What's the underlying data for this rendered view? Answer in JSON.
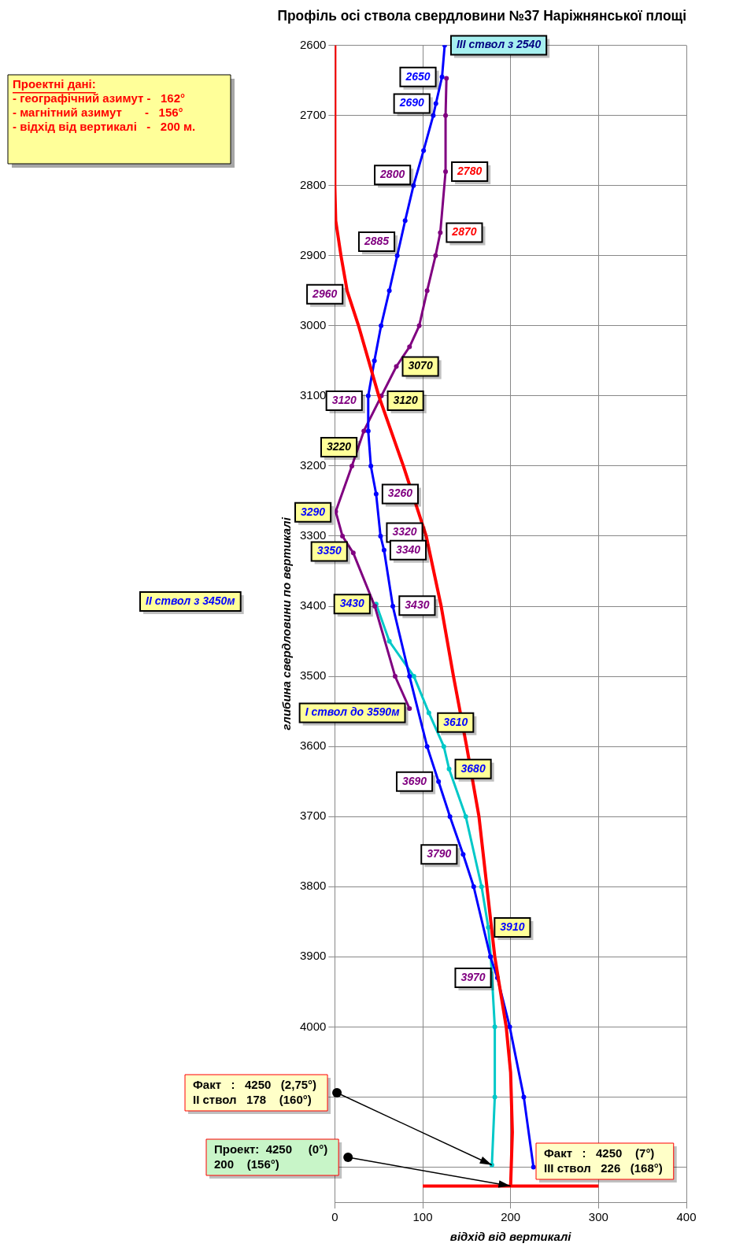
{
  "chart_data": {
    "type": "line",
    "title": "Профіль осі ствола свердловини №37 Наріжнянської площі",
    "xlabel": "відхід від вертикалі",
    "ylabel": "глибина свердловини по вертикалі",
    "xlim": [
      0,
      400
    ],
    "xticks": [
      0,
      100,
      200,
      300,
      400
    ],
    "ylim": [
      4250,
      2600
    ],
    "yticks": [
      2600,
      2700,
      2800,
      2900,
      3000,
      3100,
      3200,
      3300,
      3400,
      3500,
      3600,
      3700,
      3800,
      3900,
      4000,
      {
        "value": 4100,
        "label": null
      },
      {
        "value": 4200,
        "label": null
      }
    ],
    "grid": true,
    "legend": false,
    "series": [
      {
        "color": "#ff0000",
        "marker": "none",
        "x": [
          0,
          0,
          1,
          7,
          14,
          27,
          50,
          78,
          104,
          121,
          135,
          150,
          164,
          173,
          182,
          195,
          200,
          202,
          200
        ],
        "values": [
          2600,
          2800,
          2850,
          2900,
          2950,
          3000,
          3100,
          3200,
          3300,
          3400,
          3500,
          3600,
          3700,
          3800,
          3900,
          4000,
          4065,
          4150,
          4227
        ]
      },
      {
        "color": "#0000ff",
        "marker": "circle",
        "x": [
          125,
          122,
          115,
          112,
          101,
          89.5,
          80,
          71,
          62,
          52.6,
          45,
          38,
          38,
          41,
          47,
          52,
          56,
          66,
          85,
          105,
          118,
          131,
          146,
          158,
          177,
          185,
          199,
          215,
          226
        ],
        "values": [
          2600,
          2645,
          2683,
          2700,
          2750,
          2800,
          2850,
          2900,
          2950,
          3000,
          3050,
          3100,
          3150,
          3200,
          3240,
          3300,
          3320,
          3400,
          3500,
          3600,
          3650,
          3700,
          3754,
          3800,
          3900,
          3930,
          4000,
          4100,
          4200
        ]
      },
      {
        "color": "#800080",
        "marker": "circle",
        "x": [
          127,
          126,
          126,
          120,
          114.6,
          105,
          96,
          85,
          70,
          53,
          33,
          19.4,
          1,
          8.7,
          21,
          45.5,
          68.6,
          85
        ],
        "values": [
          2647,
          2700,
          2780,
          2867,
          2900,
          2950,
          3000,
          3030,
          3058,
          3100,
          3150,
          3200,
          3265,
          3300,
          3324,
          3400,
          3500,
          3546
        ]
      },
      {
        "color": "#00c8c8",
        "marker": "circle",
        "x": [
          47,
          62,
          90,
          107,
          124,
          130,
          149,
          167,
          174.6,
          177.5,
          182,
          182,
          178.7
        ],
        "values": [
          3397,
          3450,
          3500,
          3552,
          3600,
          3632,
          3700,
          3800,
          3858,
          3900,
          4000,
          4100,
          4197
        ]
      },
      {
        "color": "#ff0000",
        "marker": "none",
        "x": [
          100,
          300
        ],
        "values": [
          4227,
          4227
        ]
      }
    ],
    "annotations": [
      {
        "text": "III ствол з 2540",
        "x": 125,
        "y": 2600
      },
      {
        "text": "2650",
        "x": 122,
        "y": 2645
      },
      {
        "text": "2690",
        "x": 115,
        "y": 2683
      },
      {
        "text": "2780",
        "x": 126,
        "y": 2780
      },
      {
        "text": "2800",
        "x": 93,
        "y": 2785
      },
      {
        "text": "2885",
        "x": 75,
        "y": 2880
      },
      {
        "text": "2870",
        "x": 120,
        "y": 2867
      },
      {
        "text": "2960",
        "x": 16,
        "y": 2955
      },
      {
        "text": "3070",
        "x": 70,
        "y": 3058
      },
      {
        "text": "3120",
        "x": 38,
        "y": 3107
      },
      {
        "text": "3120",
        "x": 53,
        "y": 3107
      },
      {
        "text": "3220",
        "x": 19.5,
        "y": 3200
      },
      {
        "text": "3260",
        "x": 47,
        "y": 3240
      },
      {
        "text": "3290",
        "x": 2.5,
        "y": 3266
      },
      {
        "text": "3320",
        "x": 52,
        "y": 3295
      },
      {
        "text": "3340",
        "x": 56,
        "y": 3320
      },
      {
        "text": "3350",
        "x": 21,
        "y": 3322
      },
      {
        "text": "3430",
        "x": 47,
        "y": 3397
      },
      {
        "text": "3430",
        "x": 121,
        "y": 3399
      },
      {
        "text": "I ствол до 3590м",
        "x": 87,
        "y": 3552
      },
      {
        "text": "3610",
        "x": 110,
        "y": 3566
      },
      {
        "text": "3680",
        "x": 130,
        "y": 3632
      },
      {
        "text": "3690",
        "x": 118,
        "y": 3650
      },
      {
        "text": "3790",
        "x": 146,
        "y": 3754
      },
      {
        "text": "3910",
        "x": 174.6,
        "y": 3858
      },
      {
        "text": "3970",
        "x": 184.7,
        "y": 3930
      },
      "Проектні дані:",
      "- географічний азимут -   162°",
      "- магнітний азимут       -   156°",
      "- відхід від вертикалі   -   200 м.",
      "II ствол з 3450м",
      "Факт   :   4250   (2,75°)\nII ствол   178    (160°)",
      "Проект:  4250     (0°)\n200    (156°)",
      "Факт   :   4250    (7°)\nIII ствол   226   (168°)"
    ]
  }
}
